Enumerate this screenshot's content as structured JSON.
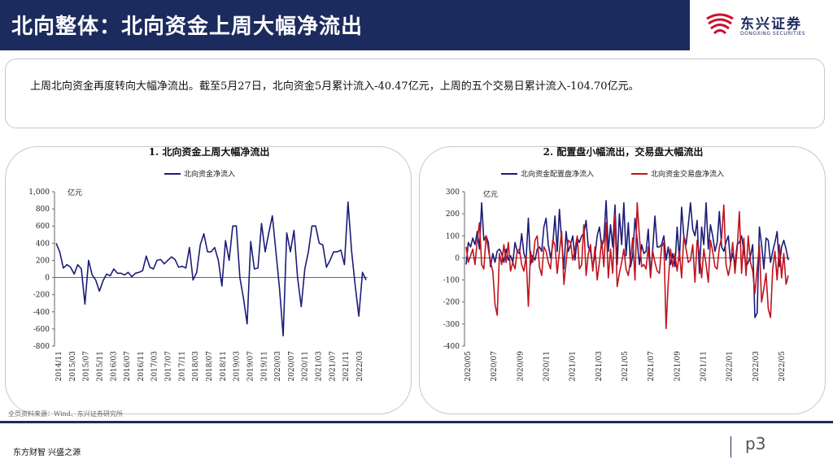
{
  "header": {
    "title": "北向整体：北向资金上周大幅净流出"
  },
  "logo": {
    "name_cn": "东兴证券",
    "name_en": "DONGXING SECURITIES",
    "brand_color": "#1c2b5e",
    "mark_color": "#c8102e"
  },
  "summary": {
    "text": "上周北向资金再度转向大幅净流出。截至5月27日，北向资金5月累计流入-40.47亿元，上周的五个交易日累计流入-104.70亿元。"
  },
  "chart_data": [
    {
      "type": "line",
      "title": "1. 北向资金上周大幅净流出",
      "ylabel": "亿元",
      "ylim": [
        -800,
        1000
      ],
      "yticks": [
        -800,
        -600,
        -400,
        -200,
        0,
        200,
        400,
        600,
        800,
        1000
      ],
      "ytick_labels": [
        "-800",
        "-600",
        "-400",
        "-200",
        "0",
        "200",
        "400",
        "600",
        "800",
        "1,000"
      ],
      "xtick_labels": [
        "2014/11",
        "2015/03",
        "2015/07",
        "2015/11",
        "2016/03",
        "2016/07",
        "2016/11",
        "2017/03",
        "2017/07",
        "2017/11",
        "2018/03",
        "2018/07",
        "2018/11",
        "2019/03",
        "2019/07",
        "2019/11",
        "2020/03",
        "2020/07",
        "2020/11",
        "2021/03",
        "2021/07",
        "2021/11",
        "2022/03"
      ],
      "legend_position": "top-center",
      "series": [
        {
          "name": "北向资金净流入",
          "color": "#1c1c78",
          "values": [
            400,
            300,
            110,
            150,
            120,
            40,
            150,
            100,
            -310,
            200,
            30,
            -30,
            -160,
            -40,
            40,
            20,
            100,
            50,
            50,
            30,
            60,
            10,
            50,
            60,
            80,
            250,
            120,
            100,
            200,
            210,
            160,
            200,
            240,
            210,
            120,
            130,
            110,
            350,
            -30,
            60,
            380,
            510,
            300,
            300,
            350,
            200,
            -100,
            430,
            200,
            600,
            600,
            0,
            -250,
            -540,
            420,
            100,
            110,
            630,
            300,
            520,
            720,
            300,
            -140,
            -680,
            520,
            300,
            550,
            0,
            -340,
            100,
            300,
            600,
            600,
            400,
            380,
            120,
            200,
            300,
            300,
            320,
            150,
            880,
            300,
            -100,
            -450,
            60,
            -30
          ]
        }
      ]
    },
    {
      "type": "line",
      "title": "2. 配置盘小幅流出，交易盘大幅流出",
      "ylabel": "亿元",
      "ylim": [
        -400,
        300
      ],
      "yticks": [
        -400,
        -300,
        -200,
        -100,
        0,
        100,
        200,
        300
      ],
      "ytick_labels": [
        "-400",
        "-300",
        "-200",
        "-100",
        "0",
        "100",
        "200",
        "300"
      ],
      "xtick_labels": [
        "2020/05",
        "2020/07",
        "2020/09",
        "2020/11",
        "2021/01",
        "2021/03",
        "2021/05",
        "2021/07",
        "2021/09",
        "2021/11",
        "2022/01",
        "2022/03",
        "2022/05"
      ],
      "legend_position": "top-center",
      "series": [
        {
          "name": "北向资金配置盘净流入",
          "color": "#1c1c78",
          "values": [
            -30,
            70,
            50,
            90,
            60,
            120,
            40,
            250,
            80,
            100,
            70,
            -40,
            20,
            -20,
            30,
            40,
            20,
            -20,
            40,
            -10,
            10,
            -20,
            70,
            30,
            20,
            110,
            20,
            -10,
            180,
            -30,
            10,
            -10,
            40,
            50,
            30,
            140,
            180,
            60,
            0,
            60,
            190,
            30,
            220,
            80,
            -50,
            120,
            30,
            60,
            100,
            -10,
            90,
            70,
            100,
            110,
            170,
            50,
            30,
            -40,
            10,
            100,
            140,
            50,
            80,
            260,
            30,
            150,
            50,
            240,
            -30,
            200,
            60,
            250,
            10,
            160,
            -40,
            10,
            180,
            80,
            -30,
            60,
            20,
            30,
            130,
            -80,
            40,
            190,
            50,
            50,
            60,
            100,
            -10,
            50,
            -30,
            20,
            -40,
            140,
            -10,
            230,
            100,
            60,
            150,
            250,
            130,
            100,
            170,
            -70,
            140,
            60,
            250,
            40,
            150,
            100,
            30,
            70,
            210,
            50,
            30,
            70,
            100,
            -20,
            20,
            -30,
            60,
            70,
            100,
            30,
            -40,
            -20,
            10,
            60,
            -270,
            -250,
            140,
            60,
            -50,
            90,
            80,
            -20,
            30,
            70,
            120,
            -40,
            50,
            80,
            40,
            -10
          ]
        },
        {
          "name": "北向资金交易盘净流入",
          "color": "#c0141e",
          "values": [
            50,
            -20,
            10,
            40,
            -30,
            80,
            160,
            -30,
            -50,
            100,
            40,
            -20,
            -60,
            -210,
            -260,
            20,
            -30,
            60,
            -20,
            70,
            -60,
            -20,
            -50,
            30,
            40,
            -30,
            -60,
            10,
            -220,
            30,
            -20,
            80,
            100,
            -40,
            -80,
            50,
            30,
            -20,
            -50,
            80,
            60,
            -70,
            30,
            120,
            -120,
            -20,
            80,
            70,
            -10,
            40,
            100,
            -50,
            -30,
            150,
            -80,
            20,
            60,
            -60,
            50,
            -100,
            -20,
            80,
            -40,
            160,
            -90,
            40,
            -70,
            200,
            -130,
            -70,
            -20,
            40,
            -50,
            -80,
            -10,
            90,
            -100,
            250,
            100,
            -40,
            -30,
            -50,
            50,
            -90,
            30,
            -20,
            -60,
            -70,
            50,
            70,
            -320,
            -110,
            40,
            -40,
            20,
            -60,
            30,
            -90,
            100,
            40,
            -20,
            -10,
            60,
            -110,
            80,
            20,
            -90,
            40,
            -30,
            -110,
            80,
            30,
            -40,
            -50,
            50,
            90,
            240,
            -30,
            -80,
            -30,
            70,
            -70,
            40,
            210,
            -70,
            90,
            -80,
            100,
            -20,
            -60,
            -160,
            -50,
            60,
            -200,
            -140,
            -70,
            -230,
            -270,
            -50,
            30,
            -100,
            60,
            -90,
            20,
            -120,
            -80
          ]
        }
      ]
    }
  ],
  "footer": {
    "source": "全页资料来源：Wind、东兴证券研究所",
    "slogan": "东方财智 兴盛之源",
    "page": "p3"
  }
}
